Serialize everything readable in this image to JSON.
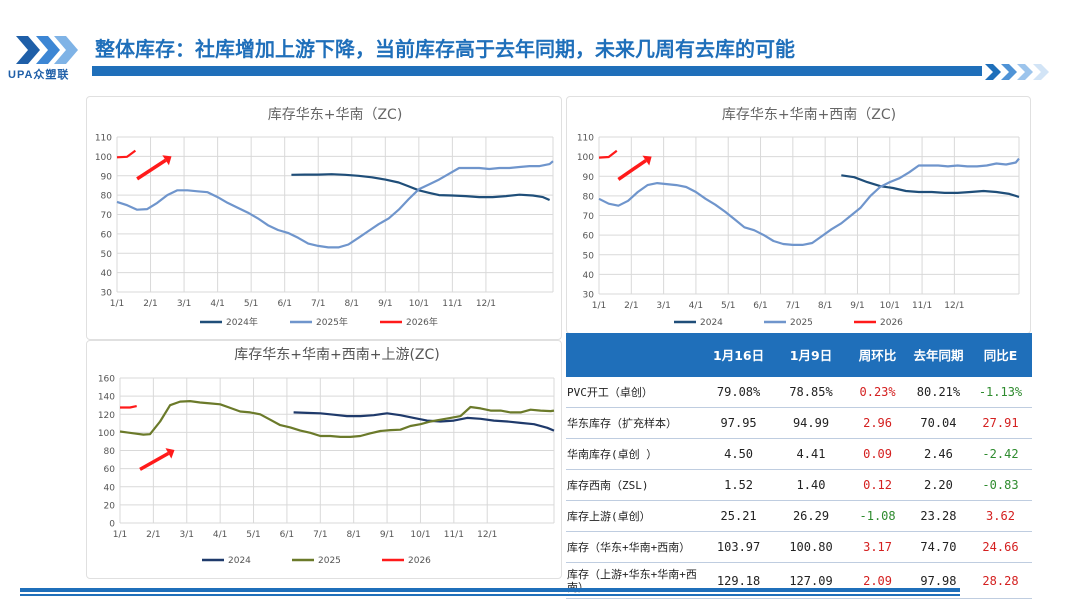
{
  "header": {
    "title": "整体库存：社库增加上游下降，当前库存高于去年同期，未来几周有去库的可能",
    "logo_text": "UPA众塑联"
  },
  "chart_data": [
    {
      "type": "line",
      "title": "库存华东+华南（ZC)",
      "ylim": [
        30,
        110
      ],
      "yticks": [
        30,
        40,
        50,
        60,
        70,
        80,
        90,
        100,
        110
      ],
      "xticks": [
        "1/1",
        "2/1",
        "3/1",
        "4/1",
        "5/1",
        "6/1",
        "7/1",
        "8/1",
        "9/1",
        "10/1",
        "11/1",
        "12/1"
      ],
      "legend": [
        "2024年",
        "2025年",
        "2026年"
      ],
      "colors": [
        "#1f4e79",
        "#6f95cc",
        "#ff1a1a"
      ],
      "series": [
        {
          "name": "2024年",
          "points": [
            [
              5.2,
              90.5
            ],
            [
              5.6,
              90.6
            ],
            [
              6.0,
              90.6
            ],
            [
              6.4,
              90.8
            ],
            [
              6.8,
              90.5
            ],
            [
              7.2,
              90.0
            ],
            [
              7.6,
              89.2
            ],
            [
              8.0,
              88.0
            ],
            [
              8.4,
              86.5
            ],
            [
              8.7,
              84.5
            ],
            [
              9.0,
              82.5
            ],
            [
              9.3,
              81.2
            ],
            [
              9.6,
              80.0
            ],
            [
              10.0,
              79.8
            ],
            [
              10.4,
              79.5
            ],
            [
              10.8,
              79.0
            ],
            [
              11.2,
              79.0
            ],
            [
              11.6,
              79.5
            ],
            [
              12.0,
              80.2
            ],
            [
              12.4,
              79.8
            ],
            [
              12.7,
              79.0
            ],
            [
              12.9,
              77.5
            ]
          ]
        },
        {
          "name": "2025年",
          "points": [
            [
              0.0,
              76.5
            ],
            [
              0.3,
              74.8
            ],
            [
              0.6,
              72.5
            ],
            [
              0.9,
              72.8
            ],
            [
              1.2,
              76
            ],
            [
              1.5,
              80
            ],
            [
              1.8,
              82.5
            ],
            [
              2.1,
              82.5
            ],
            [
              2.4,
              82.0
            ],
            [
              2.7,
              81.5
            ],
            [
              3.0,
              79
            ],
            [
              3.3,
              76
            ],
            [
              3.6,
              73.5
            ],
            [
              3.9,
              71
            ],
            [
              4.2,
              68
            ],
            [
              4.5,
              64.5
            ],
            [
              4.8,
              62
            ],
            [
              5.1,
              60.5
            ],
            [
              5.4,
              58
            ],
            [
              5.7,
              55
            ],
            [
              6.0,
              53.8
            ],
            [
              6.3,
              53
            ],
            [
              6.6,
              53
            ],
            [
              6.9,
              54.5
            ],
            [
              7.2,
              58
            ],
            [
              7.5,
              61.5
            ],
            [
              7.8,
              65
            ],
            [
              8.1,
              68
            ],
            [
              8.4,
              72.5
            ],
            [
              8.7,
              78
            ],
            [
              9.0,
              83
            ],
            [
              9.3,
              85.5
            ],
            [
              9.6,
              88
            ],
            [
              9.9,
              91
            ],
            [
              10.2,
              94
            ],
            [
              10.5,
              94
            ],
            [
              10.8,
              94
            ],
            [
              11.1,
              93.5
            ],
            [
              11.4,
              94
            ],
            [
              11.7,
              94
            ],
            [
              12.0,
              94.5
            ],
            [
              12.3,
              95
            ],
            [
              12.6,
              95
            ],
            [
              12.9,
              96
            ],
            [
              13.0,
              97.5
            ]
          ]
        },
        {
          "name": "2026年",
          "points": [
            [
              0.0,
              99.5
            ],
            [
              0.3,
              99.8
            ],
            [
              0.55,
              103
            ]
          ]
        }
      ],
      "annotation": "red-arrow-up"
    },
    {
      "type": "line",
      "title": "库存华东+华南+西南（ZC)",
      "ylim": [
        30,
        110
      ],
      "yticks": [
        30,
        40,
        50,
        60,
        70,
        80,
        90,
        100,
        110
      ],
      "xticks": [
        "1/1",
        "2/1",
        "3/1",
        "4/1",
        "5/1",
        "6/1",
        "7/1",
        "8/1",
        "9/1",
        "10/1",
        "11/1",
        "12/1"
      ],
      "legend": [
        "2024",
        "2025",
        "2026"
      ],
      "colors": [
        "#1f4e79",
        "#6f95cc",
        "#ff1a1a"
      ],
      "series": [
        {
          "name": "2024",
          "points": [
            [
              7.5,
              90.5
            ],
            [
              7.9,
              89.5
            ],
            [
              8.3,
              87
            ],
            [
              8.7,
              85
            ],
            [
              9.1,
              84
            ],
            [
              9.5,
              82.5
            ],
            [
              9.9,
              82
            ],
            [
              10.3,
              82
            ],
            [
              10.7,
              81.5
            ],
            [
              11.1,
              81.5
            ],
            [
              11.5,
              82
            ],
            [
              11.9,
              82.5
            ],
            [
              12.3,
              82
            ],
            [
              12.7,
              81
            ],
            [
              13.0,
              79.5
            ]
          ]
        },
        {
          "name": "2025",
          "points": [
            [
              0.0,
              78.5
            ],
            [
              0.3,
              76
            ],
            [
              0.6,
              75
            ],
            [
              0.9,
              77.5
            ],
            [
              1.2,
              82
            ],
            [
              1.5,
              85.5
            ],
            [
              1.8,
              86.5
            ],
            [
              2.1,
              86
            ],
            [
              2.4,
              85.5
            ],
            [
              2.7,
              84.5
            ],
            [
              3.0,
              82
            ],
            [
              3.3,
              78.5
            ],
            [
              3.6,
              75.5
            ],
            [
              3.9,
              72
            ],
            [
              4.2,
              68
            ],
            [
              4.5,
              64
            ],
            [
              4.8,
              62.5
            ],
            [
              5.1,
              60
            ],
            [
              5.4,
              57
            ],
            [
              5.7,
              55.5
            ],
            [
              6.0,
              55
            ],
            [
              6.3,
              55
            ],
            [
              6.6,
              56
            ],
            [
              6.9,
              59.5
            ],
            [
              7.2,
              63
            ],
            [
              7.5,
              66
            ],
            [
              7.8,
              70
            ],
            [
              8.1,
              74
            ],
            [
              8.4,
              80
            ],
            [
              8.7,
              84.5
            ],
            [
              9.0,
              87
            ],
            [
              9.3,
              89
            ],
            [
              9.6,
              92
            ],
            [
              9.9,
              95.5
            ],
            [
              10.2,
              95.5
            ],
            [
              10.5,
              95.5
            ],
            [
              10.8,
              95
            ],
            [
              11.1,
              95.5
            ],
            [
              11.4,
              95
            ],
            [
              11.7,
              95
            ],
            [
              12.0,
              95.5
            ],
            [
              12.3,
              96.5
            ],
            [
              12.6,
              96
            ],
            [
              12.9,
              97
            ],
            [
              13.0,
              99
            ]
          ]
        },
        {
          "name": "2026",
          "points": [
            [
              0.0,
              99.5
            ],
            [
              0.3,
              99.8
            ],
            [
              0.55,
              103
            ]
          ]
        }
      ],
      "annotation": "red-arrow-up"
    },
    {
      "type": "line",
      "title": "库存华东+华南+西南+上游(ZC)",
      "ylim": [
        0,
        160
      ],
      "yticks": [
        0,
        20,
        40,
        60,
        80,
        100,
        120,
        140,
        160
      ],
      "xticks": [
        "1/1",
        "2/1",
        "3/1",
        "4/1",
        "5/1",
        "6/1",
        "7/1",
        "8/1",
        "9/1",
        "10/1",
        "11/1",
        "12/1"
      ],
      "legend": [
        "2024",
        "2025",
        "2026"
      ],
      "colors": [
        "#1f3a6b",
        "#6b7a2a",
        "#ff1a1a"
      ],
      "series": [
        {
          "name": "2024",
          "points": [
            [
              5.2,
              122
            ],
            [
              5.6,
              121.5
            ],
            [
              6.0,
              121
            ],
            [
              6.4,
              119.5
            ],
            [
              6.8,
              118
            ],
            [
              7.2,
              118
            ],
            [
              7.6,
              119
            ],
            [
              8.0,
              121
            ],
            [
              8.4,
              119
            ],
            [
              8.8,
              116
            ],
            [
              9.2,
              113
            ],
            [
              9.6,
              112
            ],
            [
              10.0,
              113
            ],
            [
              10.4,
              116
            ],
            [
              10.8,
              115
            ],
            [
              11.2,
              113
            ],
            [
              11.6,
              112
            ],
            [
              12.0,
              110.5
            ],
            [
              12.4,
              109
            ],
            [
              12.8,
              105
            ],
            [
              13.0,
              102
            ]
          ]
        },
        {
          "name": "2025",
          "points": [
            [
              0.0,
              101
            ],
            [
              0.4,
              99
            ],
            [
              0.7,
              97.5
            ],
            [
              0.9,
              98
            ],
            [
              1.2,
              112
            ],
            [
              1.5,
              130
            ],
            [
              1.8,
              134
            ],
            [
              2.1,
              134.5
            ],
            [
              2.4,
              133
            ],
            [
              2.7,
              132
            ],
            [
              3.0,
              131
            ],
            [
              3.3,
              127
            ],
            [
              3.6,
              123
            ],
            [
              3.9,
              122
            ],
            [
              4.2,
              120
            ],
            [
              4.5,
              114
            ],
            [
              4.8,
              108
            ],
            [
              5.1,
              105.5
            ],
            [
              5.4,
              102
            ],
            [
              5.7,
              99.5
            ],
            [
              6.0,
              96
            ],
            [
              6.3,
              96
            ],
            [
              6.6,
              95
            ],
            [
              6.9,
              95
            ],
            [
              7.2,
              96
            ],
            [
              7.5,
              99
            ],
            [
              7.8,
              101.5
            ],
            [
              8.1,
              102.5
            ],
            [
              8.4,
              103
            ],
            [
              8.7,
              107
            ],
            [
              9.0,
              109
            ],
            [
              9.3,
              112
            ],
            [
              9.6,
              114
            ],
            [
              9.9,
              116
            ],
            [
              10.2,
              118
            ],
            [
              10.5,
              128
            ],
            [
              10.8,
              126.5
            ],
            [
              11.1,
              124
            ],
            [
              11.4,
              124
            ],
            [
              11.7,
              122
            ],
            [
              12.0,
              122
            ],
            [
              12.3,
              125
            ],
            [
              12.6,
              124
            ],
            [
              12.9,
              123.5
            ],
            [
              13.0,
              124
            ]
          ]
        },
        {
          "name": "2026",
          "points": [
            [
              0.0,
              127.5
            ],
            [
              0.3,
              127.5
            ],
            [
              0.5,
              129
            ]
          ]
        }
      ],
      "annotation": "red-arrow-up"
    }
  ],
  "table": {
    "headers": [
      "",
      "1月16日",
      "1月9日",
      "周环比",
      "去年同期",
      "同比E"
    ],
    "rows": [
      {
        "label": "PVC开工（卓创）",
        "sub": "",
        "c1": "79.08%",
        "c2": "78.85%",
        "wow": "0.23%",
        "yoy": "80.21%",
        "ratio": "-1.13%",
        "wow_color": "red",
        "ratio_color": "green"
      },
      {
        "label": "华东库存",
        "sub": "（扩充样本）",
        "c1": "97.95",
        "c2": "94.99",
        "wow": "2.96",
        "yoy": "70.04",
        "ratio": "27.91",
        "wow_color": "red",
        "ratio_color": "red"
      },
      {
        "label": "华南库存(卓创 ）",
        "sub": "",
        "c1": "4.50",
        "c2": "4.41",
        "wow": "0.09",
        "yoy": "2.46",
        "ratio": "-2.42",
        "wow_color": "red",
        "ratio_color": "green"
      },
      {
        "label": "库存西南（ZSL)",
        "sub": "",
        "c1": "1.52",
        "c2": "1.40",
        "wow": "0.12",
        "yoy": "2.20",
        "ratio": "-0.83",
        "wow_color": "red",
        "ratio_color": "green"
      },
      {
        "label": "库存上游(卓创）",
        "sub": "",
        "c1": "25.21",
        "c2": "26.29",
        "wow": "-1.08",
        "yoy": "23.28",
        "ratio": "3.62",
        "wow_color": "green",
        "ratio_color": "red"
      },
      {
        "label": "库存（华东+华南+西南）",
        "sub": "",
        "c1": "103.97",
        "c2": "100.80",
        "wow": "3.17",
        "yoy": "74.70",
        "ratio": "24.66",
        "wow_color": "red",
        "ratio_color": "red"
      },
      {
        "label": "库存（上游+华东+华南+西南）",
        "sub": "",
        "c1": "129.18",
        "c2": "127.09",
        "wow": "2.09",
        "yoy": "97.98",
        "ratio": "28.28",
        "wow_color": "red",
        "ratio_color": "red"
      }
    ]
  }
}
